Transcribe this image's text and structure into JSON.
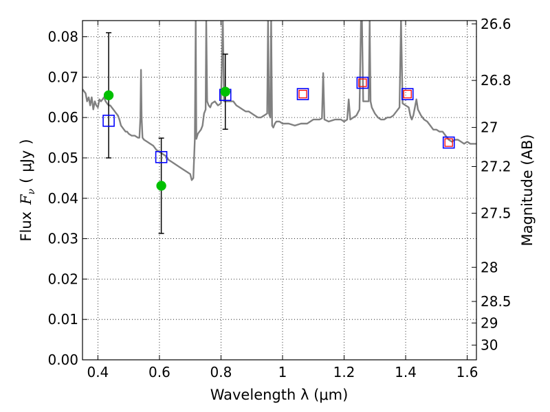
{
  "chart_data": {
    "type": "scatter",
    "xlabel": "Wavelength  λ (μm)",
    "ylabel_left": "Flux  F_ν  ( μJy )",
    "ylabel_left_parts": {
      "flux": "Flux",
      "symbol": "F",
      "subscript": "ν",
      "unit_open": "(",
      "unit": "μJy",
      "unit_close": ")"
    },
    "ylabel_right": "Magnitude (AB)",
    "xlim": [
      0.35,
      1.63
    ],
    "ylim": [
      0.0,
      0.084
    ],
    "grid": true,
    "x_ticks": [
      {
        "value": 0.4,
        "label": "0.4"
      },
      {
        "value": 0.6,
        "label": "0.6"
      },
      {
        "value": 0.8,
        "label": "0.8"
      },
      {
        "value": 1.0,
        "label": "1"
      },
      {
        "value": 1.2,
        "label": "1.2"
      },
      {
        "value": 1.4,
        "label": "1.4"
      },
      {
        "value": 1.6,
        "label": "1.6"
      }
    ],
    "y_ticks": [
      {
        "value": 0.0,
        "label": "0.00"
      },
      {
        "value": 0.01,
        "label": "0.01"
      },
      {
        "value": 0.02,
        "label": "0.02"
      },
      {
        "value": 0.03,
        "label": "0.03"
      },
      {
        "value": 0.04,
        "label": "0.04"
      },
      {
        "value": 0.05,
        "label": "0.05"
      },
      {
        "value": 0.06,
        "label": "0.06"
      },
      {
        "value": 0.07,
        "label": "0.07"
      },
      {
        "value": 0.08,
        "label": "0.08"
      }
    ],
    "mag_ticks": [
      {
        "value": 26.6,
        "label": "26.6"
      },
      {
        "value": 26.8,
        "label": "26.8"
      },
      {
        "value": 27.0,
        "label": "27"
      },
      {
        "value": 27.2,
        "label": "27.2"
      },
      {
        "value": 27.5,
        "label": "27.5"
      },
      {
        "value": 28.0,
        "label": "28"
      },
      {
        "value": 28.5,
        "label": "28.5"
      },
      {
        "value": 29.0,
        "label": "29"
      },
      {
        "value": 30.0,
        "label": "30"
      }
    ],
    "observed_flux": {
      "color": "#00c000",
      "points": [
        {
          "x": 0.435,
          "y": 0.0655,
          "yerr": 0.0155
        },
        {
          "x": 0.606,
          "y": 0.0431,
          "yerr": 0.0118
        },
        {
          "x": 0.814,
          "y": 0.0664,
          "yerr": 0.0093
        }
      ]
    },
    "model_bandpass_flux": {
      "color": "#0000ff",
      "points": [
        {
          "x": 0.435,
          "y": 0.0592
        },
        {
          "x": 0.606,
          "y": 0.0502
        },
        {
          "x": 0.814,
          "y": 0.0656
        },
        {
          "x": 1.066,
          "y": 0.0658
        },
        {
          "x": 1.26,
          "y": 0.0686
        },
        {
          "x": 1.406,
          "y": 0.0658
        },
        {
          "x": 1.54,
          "y": 0.0538
        }
      ]
    },
    "inner_squares": {
      "color": "#ff0000",
      "points": [
        {
          "x": 1.066,
          "y": 0.0658
        },
        {
          "x": 1.26,
          "y": 0.0686
        },
        {
          "x": 1.406,
          "y": 0.0658
        },
        {
          "x": 1.54,
          "y": 0.0538
        }
      ]
    },
    "model_spectrum": {
      "color": "#808080",
      "points": [
        [
          0.35,
          0.067
        ],
        [
          0.36,
          0.066
        ],
        [
          0.365,
          0.064
        ],
        [
          0.37,
          0.065
        ],
        [
          0.375,
          0.063
        ],
        [
          0.38,
          0.065
        ],
        [
          0.385,
          0.062
        ],
        [
          0.39,
          0.064
        ],
        [
          0.395,
          0.063
        ],
        [
          0.4,
          0.0625
        ],
        [
          0.405,
          0.0645
        ],
        [
          0.41,
          0.064
        ],
        [
          0.415,
          0.0645
        ],
        [
          0.42,
          0.065
        ],
        [
          0.425,
          0.064
        ],
        [
          0.43,
          0.0635
        ],
        [
          0.435,
          0.063
        ],
        [
          0.44,
          0.063
        ],
        [
          0.445,
          0.0625
        ],
        [
          0.45,
          0.062
        ],
        [
          0.455,
          0.0615
        ],
        [
          0.46,
          0.061
        ],
        [
          0.465,
          0.0605
        ],
        [
          0.47,
          0.0595
        ],
        [
          0.475,
          0.058
        ],
        [
          0.48,
          0.0575
        ],
        [
          0.485,
          0.057
        ],
        [
          0.49,
          0.0565
        ],
        [
          0.495,
          0.0565
        ],
        [
          0.5,
          0.056
        ],
        [
          0.51,
          0.0555
        ],
        [
          0.52,
          0.0555
        ],
        [
          0.53,
          0.055
        ],
        [
          0.535,
          0.055
        ],
        [
          0.538,
          0.06
        ],
        [
          0.54,
          0.0718
        ],
        [
          0.542,
          0.06
        ],
        [
          0.545,
          0.055
        ],
        [
          0.55,
          0.0545
        ],
        [
          0.56,
          0.054
        ],
        [
          0.57,
          0.0535
        ],
        [
          0.58,
          0.053
        ],
        [
          0.59,
          0.052
        ],
        [
          0.6,
          0.0515
        ],
        [
          0.61,
          0.051
        ],
        [
          0.62,
          0.0505
        ],
        [
          0.63,
          0.0495
        ],
        [
          0.64,
          0.049
        ],
        [
          0.65,
          0.0485
        ],
        [
          0.66,
          0.048
        ],
        [
          0.67,
          0.0475
        ],
        [
          0.68,
          0.047
        ],
        [
          0.69,
          0.0465
        ],
        [
          0.7,
          0.046
        ],
        [
          0.705,
          0.0445
        ],
        [
          0.71,
          0.045
        ],
        [
          0.715,
          0.0547
        ],
        [
          0.718,
          0.084
        ],
        [
          0.72,
          0.0547
        ],
        [
          0.725,
          0.056
        ],
        [
          0.73,
          0.0565
        ],
        [
          0.735,
          0.057
        ],
        [
          0.74,
          0.058
        ],
        [
          0.745,
          0.061
        ],
        [
          0.75,
          0.062
        ],
        [
          0.752,
          0.084
        ],
        [
          0.755,
          0.064
        ],
        [
          0.76,
          0.063
        ],
        [
          0.765,
          0.0625
        ],
        [
          0.77,
          0.0635
        ],
        [
          0.78,
          0.064
        ],
        [
          0.79,
          0.063
        ],
        [
          0.8,
          0.0635
        ],
        [
          0.806,
          0.084
        ],
        [
          0.81,
          0.064
        ],
        [
          0.82,
          0.064
        ],
        [
          0.83,
          0.064
        ],
        [
          0.84,
          0.064
        ],
        [
          0.85,
          0.063
        ],
        [
          0.86,
          0.0625
        ],
        [
          0.87,
          0.062
        ],
        [
          0.88,
          0.0615
        ],
        [
          0.89,
          0.0615
        ],
        [
          0.9,
          0.061
        ],
        [
          0.91,
          0.0605
        ],
        [
          0.92,
          0.06
        ],
        [
          0.93,
          0.06
        ],
        [
          0.94,
          0.0605
        ],
        [
          0.95,
          0.061
        ],
        [
          0.953,
          0.084
        ],
        [
          0.956,
          0.061
        ],
        [
          0.96,
          0.06
        ],
        [
          0.963,
          0.084
        ],
        [
          0.966,
          0.058
        ],
        [
          0.97,
          0.0575
        ],
        [
          0.975,
          0.0585
        ],
        [
          0.98,
          0.059
        ],
        [
          0.99,
          0.059
        ],
        [
          1.0,
          0.0585
        ],
        [
          1.02,
          0.0585
        ],
        [
          1.04,
          0.058
        ],
        [
          1.06,
          0.0585
        ],
        [
          1.08,
          0.0585
        ],
        [
          1.09,
          0.059
        ],
        [
          1.1,
          0.0595
        ],
        [
          1.12,
          0.0595
        ],
        [
          1.128,
          0.0598
        ],
        [
          1.132,
          0.071
        ],
        [
          1.136,
          0.0595
        ],
        [
          1.15,
          0.059
        ],
        [
          1.17,
          0.0595
        ],
        [
          1.19,
          0.0595
        ],
        [
          1.2,
          0.059
        ],
        [
          1.21,
          0.0595
        ],
        [
          1.215,
          0.0645
        ],
        [
          1.22,
          0.0595
        ],
        [
          1.23,
          0.06
        ],
        [
          1.24,
          0.0605
        ],
        [
          1.25,
          0.062
        ],
        [
          1.255,
          0.084
        ],
        [
          1.258,
          0.084
        ],
        [
          1.262,
          0.064
        ],
        [
          1.27,
          0.064
        ],
        [
          1.28,
          0.064
        ],
        [
          1.283,
          0.084
        ],
        [
          1.286,
          0.064
        ],
        [
          1.29,
          0.0625
        ],
        [
          1.3,
          0.061
        ],
        [
          1.31,
          0.06
        ],
        [
          1.32,
          0.0595
        ],
        [
          1.33,
          0.0595
        ],
        [
          1.34,
          0.06
        ],
        [
          1.35,
          0.06
        ],
        [
          1.36,
          0.0605
        ],
        [
          1.37,
          0.0615
        ],
        [
          1.38,
          0.0625
        ],
        [
          1.385,
          0.084
        ],
        [
          1.39,
          0.0635
        ],
        [
          1.4,
          0.063
        ],
        [
          1.41,
          0.0625
        ],
        [
          1.415,
          0.0605
        ],
        [
          1.42,
          0.0595
        ],
        [
          1.425,
          0.0605
        ],
        [
          1.43,
          0.0625
        ],
        [
          1.435,
          0.0645
        ],
        [
          1.44,
          0.062
        ],
        [
          1.45,
          0.0605
        ],
        [
          1.46,
          0.0595
        ],
        [
          1.47,
          0.059
        ],
        [
          1.48,
          0.058
        ],
        [
          1.49,
          0.057
        ],
        [
          1.5,
          0.057
        ],
        [
          1.51,
          0.0565
        ],
        [
          1.52,
          0.0565
        ],
        [
          1.53,
          0.0555
        ],
        [
          1.54,
          0.0545
        ],
        [
          1.55,
          0.054
        ],
        [
          1.56,
          0.0545
        ],
        [
          1.57,
          0.0545
        ],
        [
          1.58,
          0.054
        ],
        [
          1.59,
          0.0535
        ],
        [
          1.6,
          0.054
        ],
        [
          1.61,
          0.0535
        ],
        [
          1.62,
          0.0535
        ],
        [
          1.63,
          0.0535
        ]
      ]
    }
  }
}
